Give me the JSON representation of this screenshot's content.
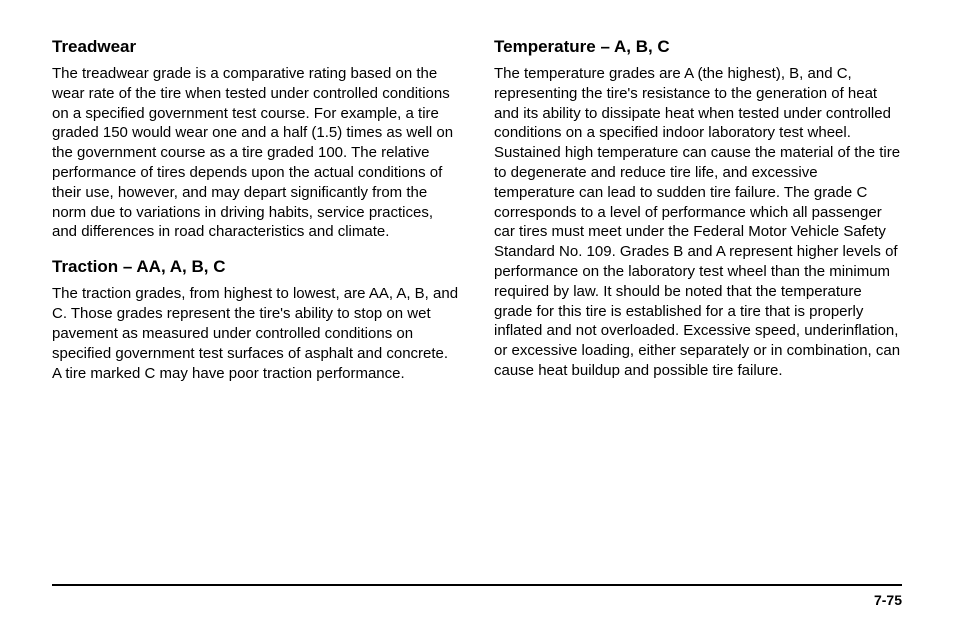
{
  "left": {
    "heading1": "Treadwear",
    "para1": "The treadwear grade is a comparative rating based on the wear rate of the tire when tested under controlled conditions on a specified government test course. For example, a tire graded 150 would wear one and a half (1.5) times as well on the government course as a tire graded 100. The relative performance of tires depends upon the actual conditions of their use, however, and may depart significantly from the norm due to variations in driving habits, service practices, and differences in road characteristics and climate.",
    "heading2": "Traction – AA, A, B, C",
    "para2": "The traction grades, from highest to lowest, are AA, A, B, and C. Those grades represent the tire's ability to stop on wet pavement as measured under controlled conditions on specified government test surfaces of asphalt and concrete. A tire marked C may have poor traction performance."
  },
  "right": {
    "heading1": "Temperature – A, B, C",
    "para1": "The temperature grades are A (the highest), B, and C, representing the tire's resistance to the generation of heat and its ability to dissipate heat when tested under controlled conditions on a specified indoor laboratory test wheel. Sustained high temperature can cause the material of the tire to degenerate and reduce tire life, and excessive temperature can lead to sudden tire failure. The grade C corresponds to a level of performance which all passenger car tires must meet under the Federal Motor Vehicle Safety Standard No. 109. Grades B and A represent higher levels of performance on the laboratory test wheel than the minimum required by law. It should be noted that the temperature grade for this tire is established for a tire that is properly inflated and not overloaded. Excessive speed, underinflation, or excessive loading, either separately or in combination, can cause heat buildup and possible tire failure."
  },
  "footer": {
    "page_number": "7-75"
  }
}
